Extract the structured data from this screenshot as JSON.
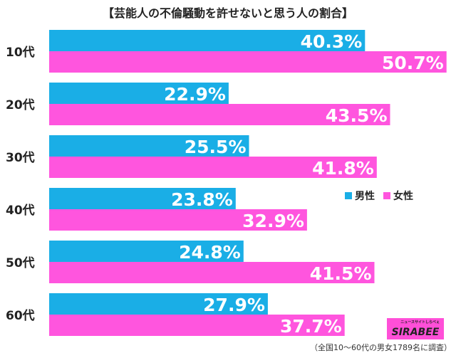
{
  "chart_data": {
    "type": "bar",
    "orientation": "horizontal",
    "title": "【芸能人の不倫騒動を許せないと思う人の割合】",
    "categories": [
      "10代",
      "20代",
      "30代",
      "40代",
      "50代",
      "60代"
    ],
    "series": [
      {
        "name": "男性",
        "color": "#1aaee6",
        "values": [
          40.3,
          22.9,
          25.5,
          23.8,
          24.8,
          27.9
        ]
      },
      {
        "name": "女性",
        "color": "#ff55de",
        "values": [
          50.7,
          43.5,
          41.8,
          32.9,
          41.5,
          37.7
        ]
      }
    ],
    "value_suffix": "%",
    "xlim": [
      0,
      52
    ],
    "grid": false,
    "legend": "right-middle"
  },
  "logo_text": "SIRABEE",
  "logo_subtext": "ニュースサイトしらべぇ",
  "footnote": "（全国10〜60代の男女1789名に調査）"
}
